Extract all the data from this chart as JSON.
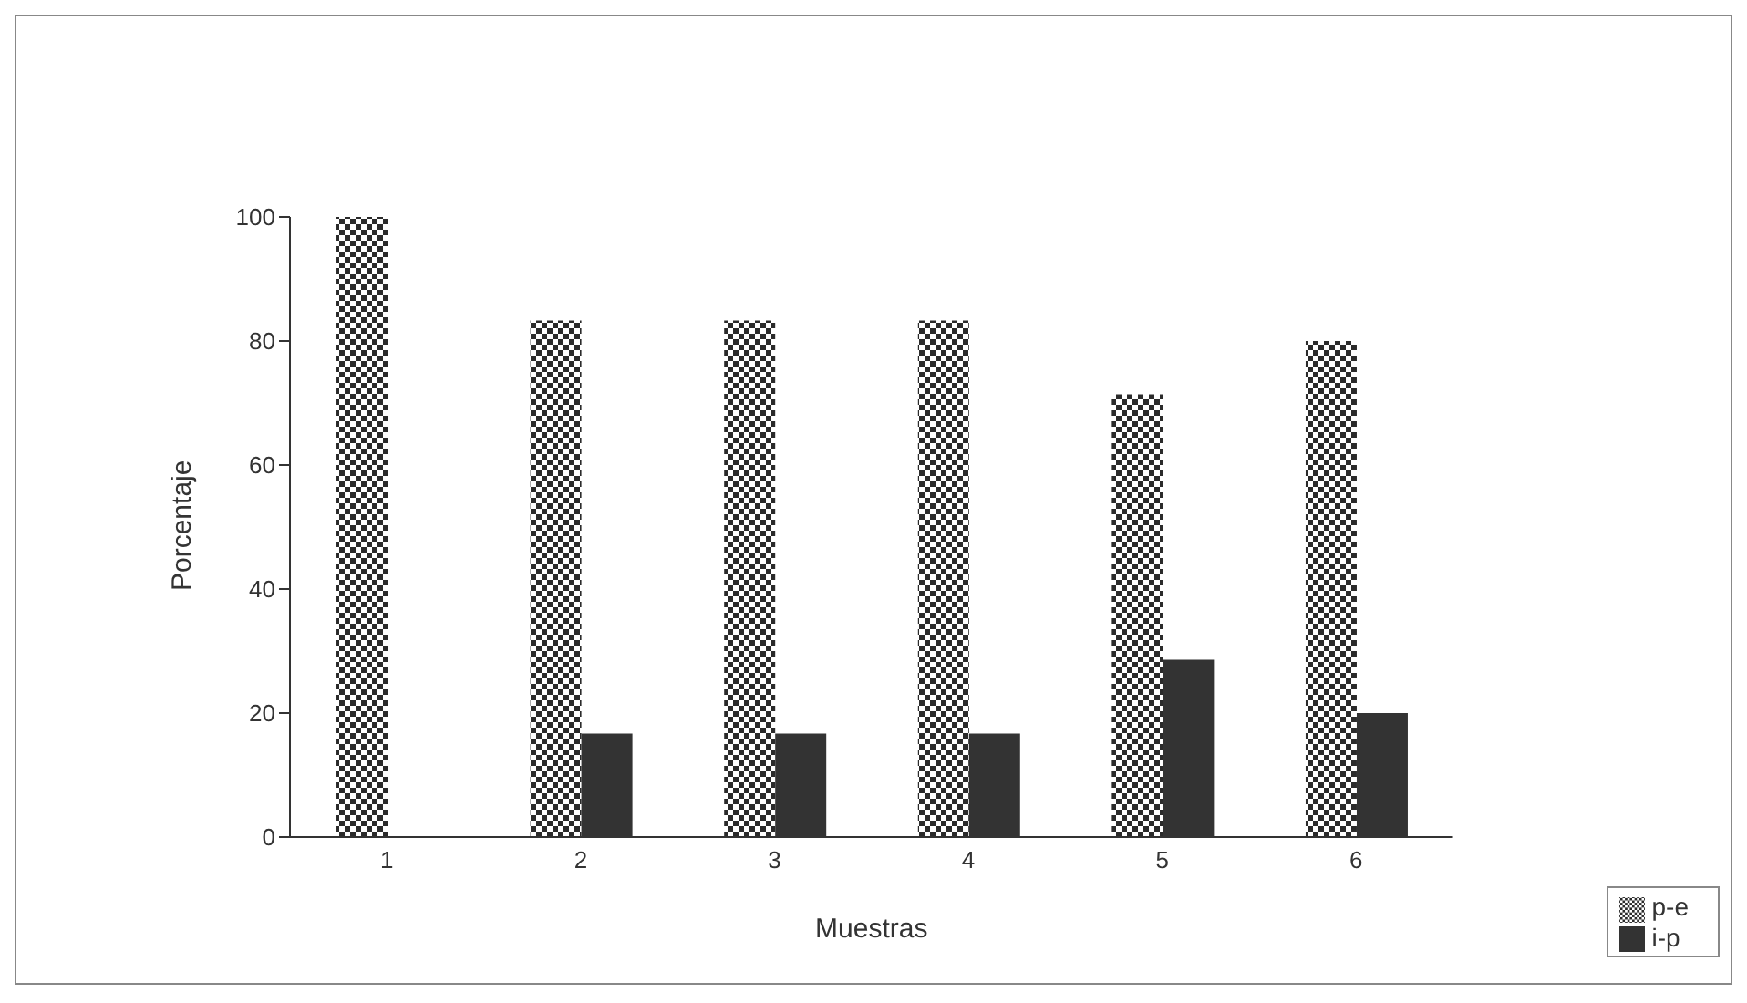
{
  "chart_data": {
    "type": "bar",
    "xlabel": "Muestras",
    "ylabel": "Porcentaje",
    "categories": [
      "1",
      "2",
      "3",
      "4",
      "5",
      "6"
    ],
    "series": [
      {
        "name": "p-e",
        "color": "#2b2b2b",
        "values": [
          100,
          83.3,
          83.3,
          83.3,
          71.4,
          80
        ]
      },
      {
        "name": "i-p",
        "color": "#333333",
        "values": [
          0,
          16.7,
          16.7,
          16.7,
          28.6,
          20
        ]
      }
    ],
    "ylim": [
      0,
      100
    ],
    "yticks": [
      0,
      20,
      40,
      60,
      80,
      100
    ],
    "grid": false,
    "legend": "bottom right"
  }
}
